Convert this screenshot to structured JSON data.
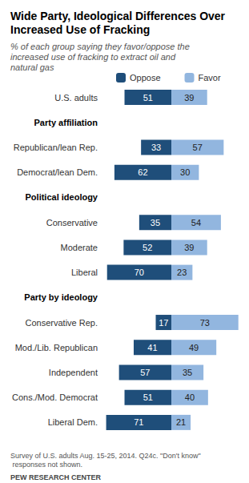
{
  "chart_data": {
    "type": "bar",
    "orientation": "horizontal",
    "title": "Wide Party, Ideological Differences Over Increased Use of Fracking",
    "subtitle": "% of each group saying they favor/oppose the increased use of fracking to extract oil and natural gas",
    "categories": [
      "U.S. adults",
      "Party affiliation",
      "Republican/lean Rep.",
      "Democrat/lean Dem.",
      "Political ideology",
      "Conservative",
      "Moderate",
      "Liberal",
      "Party by ideology",
      "Conservative Rep.",
      "Mod./Lib. Republican",
      "Independent",
      "Cons./Mod. Democrat",
      "Liberal Dem."
    ],
    "series": [
      {
        "name": "Oppose",
        "color": "#1f4e7a",
        "values": [
          51,
          null,
          33,
          62,
          null,
          35,
          52,
          70,
          null,
          17,
          41,
          57,
          51,
          71
        ]
      },
      {
        "name": "Favor",
        "color": "#92b6df",
        "values": [
          39,
          null,
          57,
          30,
          null,
          54,
          39,
          23,
          null,
          73,
          49,
          35,
          40,
          21
        ]
      }
    ],
    "xlim": [
      0,
      75
    ],
    "data_labels": true,
    "legend": "top",
    "tick_labels": "y",
    "notes": [
      "Survey of U.S. adults Aug. 15-25, 2014. Q24c. \"Don't know\" responses not shown.",
      "PEW RESEARCH CENTER"
    ]
  }
}
